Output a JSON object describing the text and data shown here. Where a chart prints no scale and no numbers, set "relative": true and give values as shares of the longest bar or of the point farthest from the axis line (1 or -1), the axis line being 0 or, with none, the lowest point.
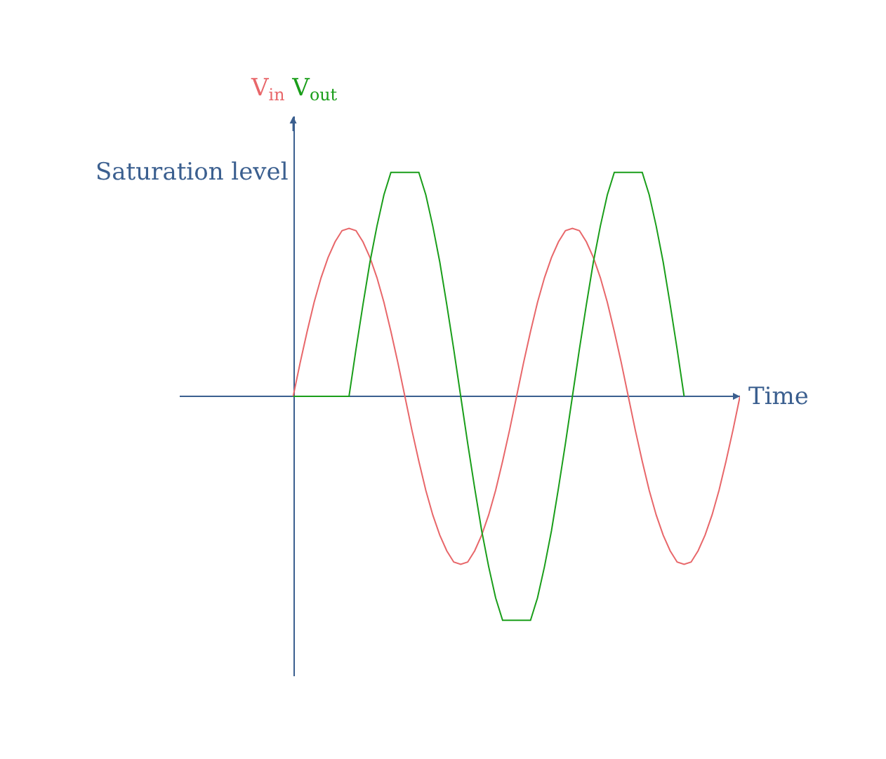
{
  "chart_data": {
    "type": "line",
    "relative": true,
    "xlabel": "Time",
    "legend": false,
    "grid": false,
    "marker": "none",
    "line_style": "solid",
    "annotations": [
      "Saturation level"
    ],
    "ref_lines": [
      {
        "axis": "y",
        "value": 0,
        "color": "#3b5f8f"
      }
    ],
    "categories": [
      null,
      null,
      null,
      null,
      null,
      null,
      null,
      null,
      null,
      null,
      null,
      null,
      null,
      null,
      null,
      null,
      null,
      null,
      null,
      null,
      null,
      null,
      null,
      null,
      null,
      null,
      null,
      null,
      null,
      null,
      null,
      null,
      null,
      null,
      null,
      null,
      null,
      null,
      null,
      null,
      null,
      null,
      null,
      null,
      null,
      null,
      null,
      null,
      null,
      null,
      null,
      null,
      null,
      null,
      null,
      null,
      null,
      null,
      null,
      null,
      null,
      null,
      null,
      null,
      null
    ],
    "series": [
      {
        "name": "V$_{in}$",
        "color": "#e8676a",
        "values": [
          0,
          0.15,
          0.29,
          0.42,
          0.53,
          0.62,
          0.69,
          0.74,
          0.75,
          0.74,
          0.69,
          0.62,
          0.53,
          0.42,
          0.29,
          0.15,
          0,
          -0.15,
          -0.29,
          -0.42,
          -0.53,
          -0.62,
          -0.69,
          -0.74,
          -0.75,
          -0.74,
          -0.69,
          -0.62,
          -0.53,
          -0.42,
          -0.29,
          -0.15,
          0,
          0.15,
          0.29,
          0.42,
          0.53,
          0.62,
          0.69,
          0.74,
          0.75,
          0.74,
          0.69,
          0.62,
          0.53,
          0.42,
          0.29,
          0.15,
          0,
          -0.15,
          -0.29,
          -0.42,
          -0.53,
          -0.62,
          -0.69,
          -0.74,
          -0.75,
          -0.74,
          -0.69,
          -0.62,
          -0.53,
          -0.42,
          -0.29,
          -0.15,
          0
        ]
      },
      {
        "name": "V$_{out}$",
        "color": "#1a9e1a",
        "values": [
          0,
          0,
          0,
          0,
          0,
          0,
          0,
          0,
          0,
          0.21,
          0.41,
          0.6,
          0.76,
          0.9,
          1,
          1,
          1,
          1,
          1,
          0.9,
          0.76,
          0.6,
          0.41,
          0.21,
          0,
          -0.21,
          -0.41,
          -0.6,
          -0.76,
          -0.9,
          -1,
          -1,
          -1,
          -1,
          -1,
          -0.9,
          -0.76,
          -0.6,
          -0.41,
          -0.21,
          0,
          0.21,
          0.41,
          0.6,
          0.76,
          0.9,
          1,
          1,
          1,
          1,
          1,
          0.9,
          0.76,
          0.6,
          0.41,
          0.21,
          0,
          null,
          null,
          null,
          null,
          null,
          null,
          null,
          null
        ]
      }
    ]
  }
}
